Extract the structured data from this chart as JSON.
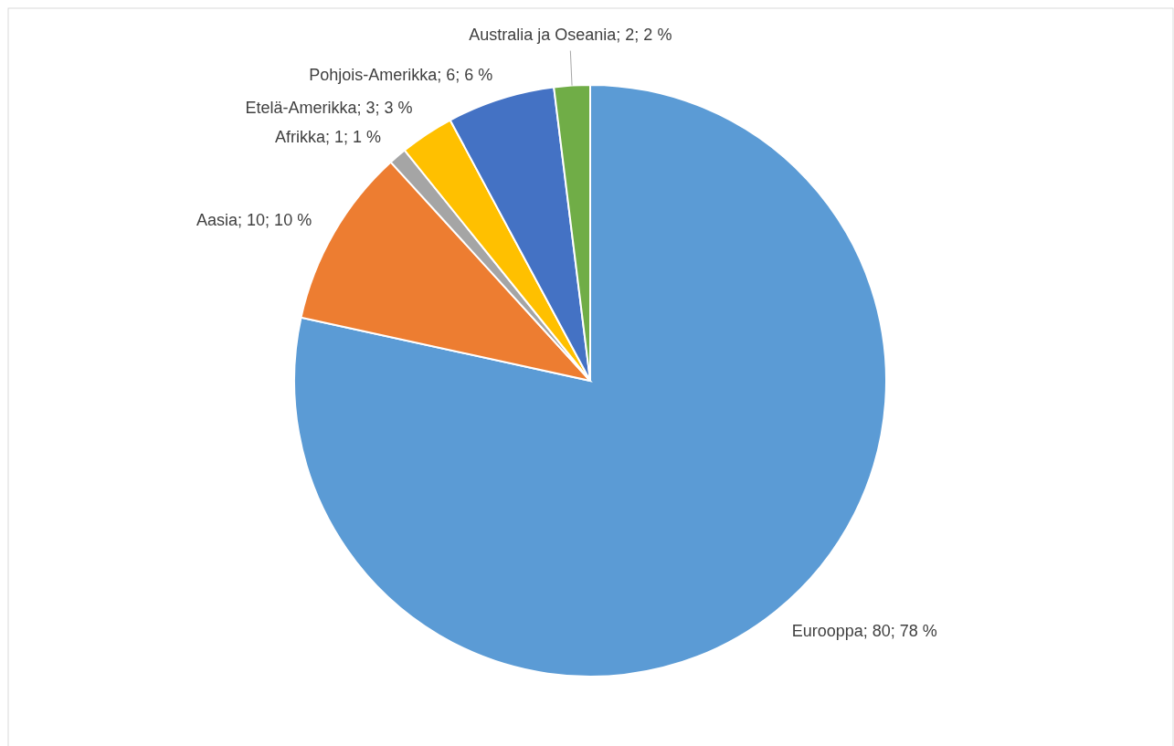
{
  "chart_data": {
    "type": "pie",
    "categories": [
      "Eurooppa",
      "Aasia",
      "Afrikka",
      "Etelä-Amerikka",
      "Pohjois-Amerikka",
      "Australia ja Oseania"
    ],
    "values": [
      80,
      10,
      1,
      3,
      6,
      2
    ],
    "colors": [
      "#5b9bd5",
      "#ed7d31",
      "#a5a5a5",
      "#ffc000",
      "#4472c4",
      "#70ad47"
    ],
    "value_labels": [
      "80; 78 %",
      "10; 10 %",
      "1; 1 %",
      "3; 3 %",
      "6; 6 %",
      "2; 2 %"
    ],
    "legend": false
  }
}
